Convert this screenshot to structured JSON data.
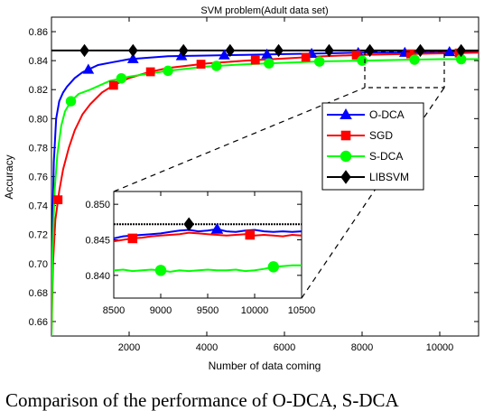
{
  "caption": "Comparison of the performance of O-DCA, S-DCA",
  "chart_data": [
    {
      "type": "line",
      "title": "SVM problem(Adult data set)",
      "xlabel": "Number of data coming",
      "ylabel": "Accuracy",
      "xlim": [
        0,
        11000
      ],
      "ylim": [
        0.65,
        0.87
      ],
      "xticks": [
        2000,
        4000,
        6000,
        8000,
        10000
      ],
      "yticks": [
        0.66,
        0.68,
        0.7,
        0.72,
        0.74,
        0.76,
        0.78,
        0.8,
        0.82,
        0.84,
        0.86
      ],
      "grid": false,
      "legend_position": "right",
      "series": [
        {
          "name": "O-DCA",
          "color": "#0000ff",
          "marker": "triangle",
          "x": [
            0,
            20,
            60,
            120,
            200,
            300,
            400,
            600,
            800,
            1200,
            1600,
            2000,
            2500,
            3000,
            4000,
            5000,
            6000,
            7000,
            8000,
            9000,
            10000,
            11000
          ],
          "y": [
            0.65,
            0.72,
            0.77,
            0.8,
            0.812,
            0.818,
            0.822,
            0.828,
            0.832,
            0.837,
            0.839,
            0.841,
            0.842,
            0.843,
            0.8435,
            0.844,
            0.8445,
            0.845,
            0.8455,
            0.8455,
            0.846,
            0.846
          ],
          "marker_x": [
            950,
            2100,
            3350,
            4450,
            5550,
            6700,
            7900,
            9100,
            10250
          ]
        },
        {
          "name": "SGD",
          "color": "#ff0000",
          "marker": "square",
          "x": [
            0,
            40,
            100,
            200,
            300,
            450,
            600,
            800,
            1000,
            1300,
            1600,
            2000,
            2500,
            3000,
            4000,
            5000,
            6000,
            7000,
            8000,
            9000,
            10000,
            11000
          ],
          "y": [
            0.65,
            0.7,
            0.73,
            0.75,
            0.765,
            0.78,
            0.792,
            0.803,
            0.81,
            0.818,
            0.823,
            0.828,
            0.832,
            0.835,
            0.838,
            0.84,
            0.8415,
            0.843,
            0.844,
            0.8445,
            0.845,
            0.8455
          ],
          "marker_x": [
            170,
            1600,
            2550,
            3850,
            5250,
            6550,
            7850,
            9250,
            10500
          ]
        },
        {
          "name": "S-DCA",
          "color": "#00ff00",
          "marker": "circle",
          "x": [
            0,
            30,
            80,
            150,
            250,
            350,
            500,
            700,
            1000,
            1500,
            2000,
            2500,
            3000,
            4000,
            5000,
            6000,
            7000,
            8000,
            9000,
            10000,
            11000
          ],
          "y": [
            0.65,
            0.71,
            0.75,
            0.775,
            0.795,
            0.805,
            0.812,
            0.817,
            0.82,
            0.826,
            0.829,
            0.831,
            0.833,
            0.836,
            0.8375,
            0.8385,
            0.8395,
            0.84,
            0.8405,
            0.841,
            0.841
          ],
          "marker_x": [
            500,
            1800,
            3000,
            4250,
            5600,
            6900,
            8000,
            9350,
            10550
          ]
        },
        {
          "name": "LIBSVM",
          "color": "#000000",
          "marker": "diamond",
          "x": [
            0,
            11000
          ],
          "y": [
            0.847,
            0.847
          ],
          "marker_x": [
            850,
            2100,
            3400,
            4600,
            5850,
            7150,
            8200,
            9500,
            10550
          ]
        }
      ]
    },
    {
      "type": "line",
      "title": "",
      "xlim": [
        8500,
        10500
      ],
      "ylim": [
        0.8368,
        0.8518
      ],
      "xticks": [
        8500,
        9000,
        9500,
        10000,
        10500
      ],
      "yticks": [
        0.84,
        0.845,
        0.85
      ],
      "series": [
        {
          "name": "O-DCA",
          "color": "#0000ff",
          "marker": "triangle",
          "x": [
            8500,
            8600,
            8700,
            8800,
            8900,
            9000,
            9100,
            9200,
            9300,
            9400,
            9500,
            9600,
            9700,
            9800,
            9900,
            10000,
            10100,
            10200,
            10300,
            10400,
            10500
          ],
          "y": [
            0.8452,
            0.8455,
            0.8456,
            0.8457,
            0.8458,
            0.8459,
            0.8461,
            0.8463,
            0.8464,
            0.8462,
            0.8463,
            0.8465,
            0.8462,
            0.8461,
            0.8463,
            0.8464,
            0.8462,
            0.8461,
            0.8462,
            0.8461,
            0.8462
          ],
          "marker_x": [
            9600
          ]
        },
        {
          "name": "SGD",
          "color": "#ff0000",
          "marker": "square",
          "x": [
            8500,
            8600,
            8700,
            8800,
            8900,
            9000,
            9100,
            9200,
            9300,
            9400,
            9500,
            9600,
            9700,
            9800,
            9900,
            10000,
            10100,
            10200,
            10300,
            10400,
            10500
          ],
          "y": [
            0.8448,
            0.845,
            0.8452,
            0.8453,
            0.8455,
            0.8456,
            0.8457,
            0.8458,
            0.846,
            0.8459,
            0.8458,
            0.8457,
            0.8456,
            0.8457,
            0.8458,
            0.8456,
            0.8457,
            0.8456,
            0.8455,
            0.8457,
            0.8456
          ],
          "marker_x": [
            8700,
            9950
          ]
        },
        {
          "name": "S-DCA",
          "color": "#00ff00",
          "marker": "circle",
          "x": [
            8500,
            8600,
            8700,
            8800,
            8900,
            9000,
            9100,
            9200,
            9300,
            9400,
            9500,
            9600,
            9700,
            9800,
            9900,
            10000,
            10100,
            10200,
            10300,
            10400,
            10500
          ],
          "y": [
            0.8407,
            0.8408,
            0.8406,
            0.8407,
            0.8408,
            0.8407,
            0.8405,
            0.8407,
            0.8406,
            0.8407,
            0.8408,
            0.8407,
            0.8407,
            0.8408,
            0.8406,
            0.8407,
            0.8409,
            0.8412,
            0.8413,
            0.8414,
            0.8414
          ],
          "marker_x": [
            9000,
            10200
          ]
        },
        {
          "name": "LIBSVM",
          "color": "#000000",
          "marker": "diamond",
          "x": [
            8500,
            10500
          ],
          "y": [
            0.8472,
            0.8472
          ],
          "marker_x": [
            9300
          ]
        }
      ]
    }
  ]
}
